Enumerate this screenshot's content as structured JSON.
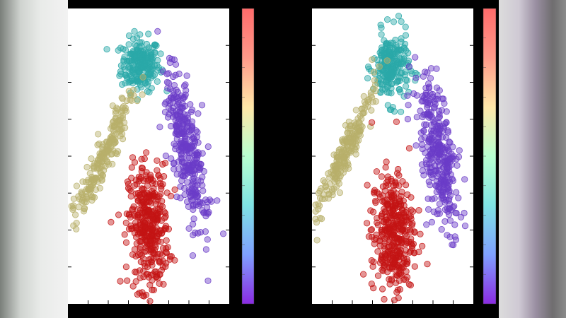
{
  "chart_data": [
    {
      "type": "scatter",
      "panel": "left",
      "title": "",
      "xlabel": "",
      "ylabel": "",
      "grid": false,
      "legend": "none",
      "colorbar": "right",
      "xlim": [
        0,
        10
      ],
      "ylim": [
        0,
        10
      ],
      "clusters": [
        {
          "color": "#2aa8a8",
          "colormap_value": 0.35,
          "center": [
            4.5,
            8.1
          ],
          "spread": [
            0.6,
            0.45
          ],
          "angle": 0,
          "count": 220
        },
        {
          "color": "#6a3cc8",
          "colormap_value": 0.05,
          "center": [
            7.4,
            5.2
          ],
          "spread": [
            0.45,
            1.35
          ],
          "angle": 22,
          "count": 330
        },
        {
          "color": "#b8b06a",
          "colormap_value": 0.55,
          "center": [
            2.2,
            5.0
          ],
          "spread": [
            0.25,
            1.55
          ],
          "angle": -40,
          "count": 220
        },
        {
          "color": "#c41414",
          "colormap_value": 1.0,
          "center": [
            5.0,
            2.6
          ],
          "spread": [
            0.62,
            1.05
          ],
          "angle": 0,
          "count": 380
        }
      ]
    },
    {
      "type": "scatter",
      "panel": "right",
      "title": "",
      "xlabel": "",
      "ylabel": "",
      "grid": false,
      "legend": "none",
      "colorbar": "right",
      "xlim": [
        0,
        10
      ],
      "ylim": [
        0,
        10
      ],
      "clusters": [
        {
          "color": "#2aa8a8",
          "colormap_value": 0.35,
          "center": [
            4.9,
            8.0
          ],
          "spread": [
            0.55,
            0.6
          ],
          "angle": 0,
          "count": 220
        },
        {
          "color": "#6a3cc8",
          "colormap_value": 0.05,
          "center": [
            7.8,
            5.1
          ],
          "spread": [
            0.45,
            1.35
          ],
          "angle": 20,
          "count": 330
        },
        {
          "color": "#b8b06a",
          "colormap_value": 0.55,
          "center": [
            2.1,
            5.2
          ],
          "spread": [
            0.25,
            1.6
          ],
          "angle": -42,
          "count": 220
        },
        {
          "color": "#c41414",
          "colormap_value": 1.0,
          "center": [
            5.0,
            2.4
          ],
          "spread": [
            0.65,
            1.05
          ],
          "angle": 0,
          "count": 380
        }
      ]
    }
  ],
  "colorbar": {
    "colormap": "rainbow",
    "stops": [
      "#8a2be2",
      "#7fa0ff",
      "#7fe3e3",
      "#b8ffd0",
      "#ffe7a8",
      "#ff9a8a",
      "#ff6b6b"
    ]
  }
}
